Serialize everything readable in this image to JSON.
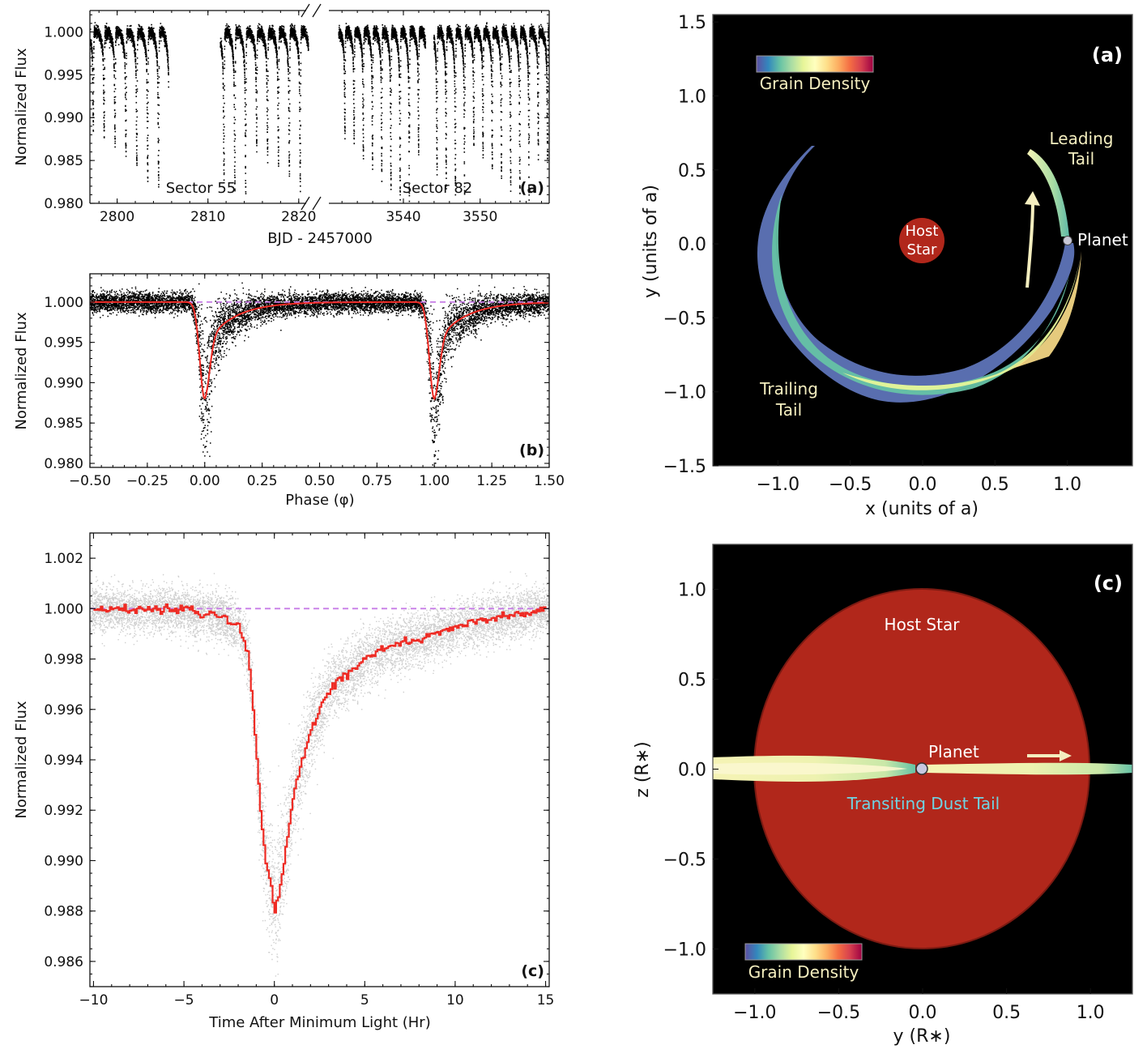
{
  "colors": {
    "data_points": "#000000",
    "model_line": "#ee2b24",
    "baseline": "#c77ce6",
    "scatter_grey": "#b9b9b9",
    "sim_background": "#000000",
    "host_star": "#b1271b",
    "label_cream": "#f4eebf",
    "label_cyan": "#6fd3e2",
    "colormap": [
      "#5e4fa2",
      "#3288bd",
      "#66c2a5",
      "#abdda4",
      "#e6f598",
      "#ffffbf",
      "#fee08b",
      "#fdae61",
      "#f46d43",
      "#d53e4f",
      "#9e0142"
    ]
  },
  "chart_data": [
    {
      "id": "a-lightcurve",
      "type": "scatter",
      "panel_label": "(a)",
      "xlabel": "BJD - 2457000",
      "ylabel": "Normalized Flux",
      "ylim": [
        0.98,
        1.0025
      ],
      "yticks": [
        "1.000",
        "0.995",
        "0.990",
        "0.985",
        "0.980"
      ],
      "broken_x_axis": true,
      "segments": [
        {
          "name": "Sector 55",
          "xlim": [
            2797,
            2821
          ],
          "xticks": [
            "2800",
            "2810",
            "2820"
          ],
          "data_range": [
            2797,
            2805.6,
            2811.3,
            2821
          ]
        },
        {
          "name": "Sector 82",
          "xlim": [
            3530.5,
            3559
          ],
          "xticks": [
            "3540",
            "3550"
          ],
          "data_range": [
            3531.5,
            3542.8,
            3543.9,
            3559
          ]
        }
      ],
      "period_days": 1.2,
      "out_of_transit_flux": 1.0,
      "transit_depth_range": [
        0.98,
        0.9875
      ]
    },
    {
      "id": "b-phasefold",
      "type": "scatter",
      "panel_label": "(b)",
      "xlabel": "Phase (φ)",
      "ylabel": "Normalized Flux",
      "xlim": [
        -0.5,
        1.5
      ],
      "ylim": [
        0.9795,
        1.0035
      ],
      "xticks": [
        "−0.50",
        "−0.25",
        "0.00",
        "0.25",
        "0.50",
        "0.75",
        "1.00",
        "1.25",
        "1.50"
      ],
      "yticks": [
        "1.000",
        "0.995",
        "0.990",
        "0.985",
        "0.980"
      ],
      "baseline": 1.0,
      "model_min": 0.988,
      "model_min_phase": [
        0.0,
        1.0
      ]
    },
    {
      "id": "c-transit-profile",
      "type": "line",
      "panel_label": "(c)",
      "xlabel": "Time After Minimum Light (Hr)",
      "ylabel": "Normalized Flux",
      "xlim": [
        -10.2,
        15.2
      ],
      "ylim": [
        0.985,
        1.003
      ],
      "xticks": [
        "−10",
        "−5",
        "0",
        "5",
        "10",
        "15"
      ],
      "yticks": [
        "1.002",
        "1.000",
        "0.998",
        "0.996",
        "0.994",
        "0.992",
        "0.990",
        "0.988",
        "0.986"
      ],
      "baseline": 1.0,
      "model": {
        "x": [
          -10,
          -5,
          -3,
          -2,
          -1.5,
          -1.2,
          -1.0,
          -0.8,
          -0.5,
          -0.2,
          0.0,
          0.2,
          0.5,
          0.8,
          1.0,
          1.5,
          2.0,
          3.0,
          4.0,
          5.0,
          6.0,
          8.0,
          10.0,
          12.0,
          15.0
        ],
        "y": [
          1.0,
          0.99995,
          0.9997,
          0.9993,
          0.9982,
          0.996,
          0.994,
          0.992,
          0.99,
          0.989,
          0.988,
          0.9885,
          0.99,
          0.9915,
          0.9925,
          0.994,
          0.9952,
          0.9968,
          0.9974,
          0.998,
          0.9984,
          0.9988,
          0.9993,
          0.9996,
          0.99995
        ]
      }
    },
    {
      "id": "a-sim-topdown",
      "type": "heatmap",
      "panel_label": "(a)",
      "xlabel": "x (units of a)",
      "ylabel": "y (units of a)",
      "xlim": [
        -1.45,
        1.45
      ],
      "ylim": [
        -1.5,
        1.55
      ],
      "xticks": [
        "−1.0",
        "−0.5",
        "0.0",
        "0.5",
        "1.0"
      ],
      "yticks": [
        "1.5",
        "1.0",
        "0.5",
        "0.0",
        "−0.5",
        "−1.0",
        "−1.5"
      ],
      "colorbar_label": "Grain Density",
      "host_star_radius": 0.14,
      "planet_position": [
        1.0,
        0.0
      ],
      "labels": {
        "host": [
          "Host",
          "Star"
        ],
        "planet": "Planet",
        "leading": [
          "Leading",
          "Tail"
        ],
        "trailing": [
          "Trailing",
          "Tail"
        ]
      }
    },
    {
      "id": "c-sim-sideview",
      "type": "heatmap",
      "panel_label": "(c)",
      "xlabel": "y (R∗)",
      "ylabel": "z (R∗)",
      "xlim": [
        -1.25,
        1.25
      ],
      "ylim": [
        -1.25,
        1.25
      ],
      "xticks": [
        "−1.0",
        "−0.5",
        "0.0",
        "0.5",
        "1.0"
      ],
      "yticks": [
        "1.0",
        "0.5",
        "0.0",
        "−0.5",
        "−1.0"
      ],
      "colorbar_label": "Grain Density",
      "host_star_radius": 1.0,
      "planet_position": [
        0.0,
        0.0
      ],
      "labels": {
        "host": "Host Star",
        "planet": "Planet",
        "tail": "Transiting Dust Tail"
      }
    }
  ]
}
